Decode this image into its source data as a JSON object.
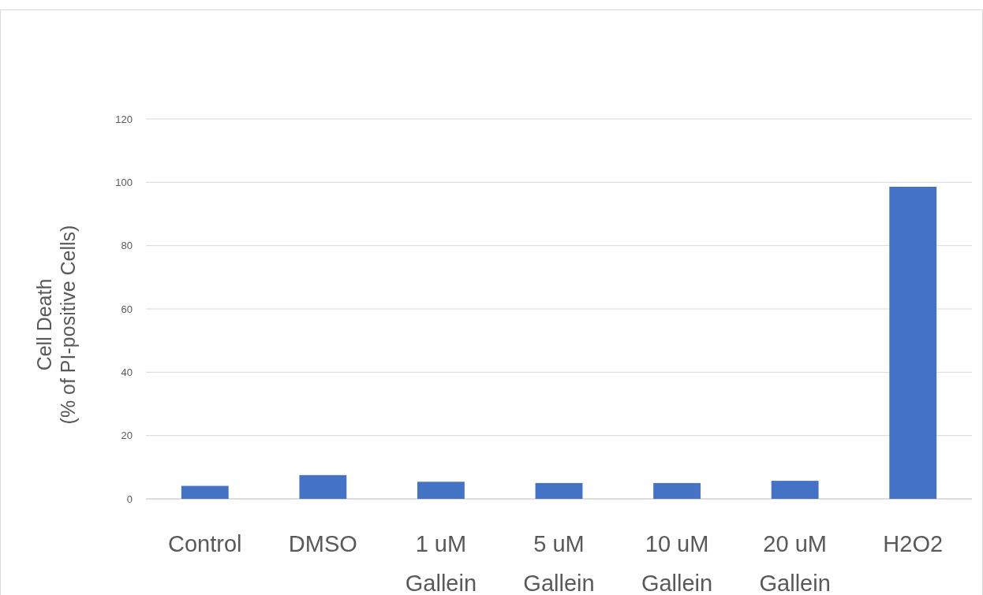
{
  "chart_data": {
    "type": "bar",
    "ylabel": "Cell Death\n(% of PI-positive Cells)",
    "categories": [
      "Control",
      "DMSO",
      "1 uM Gallein",
      "5 uM Gallein",
      "10 uM Gallein",
      "20 uM Gallein",
      "H2O2"
    ],
    "values": [
      4.1,
      7.5,
      5.4,
      5.0,
      5.0,
      5.7,
      98.6
    ],
    "color": "#4472c4",
    "ylim": [
      0,
      120
    ],
    "yticks": [
      0,
      20,
      40,
      60,
      80,
      100,
      120
    ],
    "grid": "y"
  }
}
